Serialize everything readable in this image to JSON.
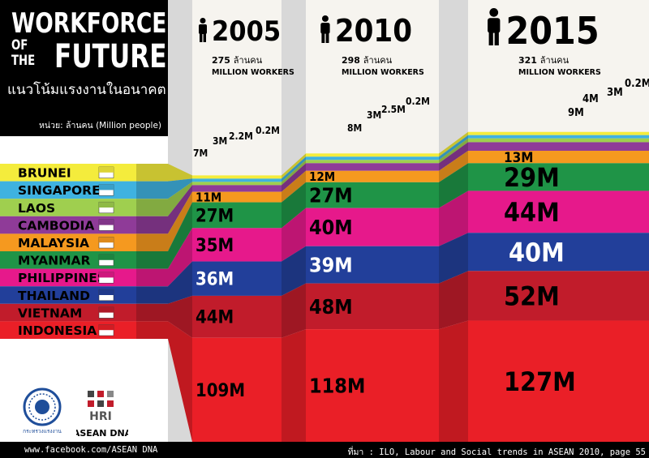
{
  "header": {
    "title_line1": "WORKFORCE",
    "title_of": "OF",
    "title_the": "THE",
    "title_future": "FUTURE",
    "subtitle_thai": "แนวโน้มแรงงานในอนาคต",
    "unit": "หน่วย: ล้านคน (Million people)"
  },
  "footer": {
    "facebook": "www.facebook.com/ASEAN DNA",
    "source": "ที่มา :  ILO, Labour and Social trends in ASEAN 2010, page 55"
  },
  "logos": {
    "seal_caption": "กระทรวงแรงงาน",
    "hri": "HRI",
    "asean_dna": "ASEAN DNA"
  },
  "colors": {
    "BRUNEI": "#f4ec3c",
    "SINGAPORE": "#3fb2e0",
    "LAOS": "#9fcf4f",
    "CAMBODIA": "#8f3b98",
    "MALAYSIA": "#f5991f",
    "MYANMAR": "#1f9447",
    "PHILIPPINES": "#e6198b",
    "THAILAND": "#223f9a",
    "VIETNAM": "#c11c2b",
    "INDONESIA": "#ea1f27"
  },
  "chart_data": {
    "type": "area",
    "categories": [
      "BRUNEI",
      "SINGAPORE",
      "LAOS",
      "CAMBODIA",
      "MALAYSIA",
      "MYANMAR",
      "PHILIPPINES",
      "THAILAND",
      "VIETNAM",
      "INDONESIA"
    ],
    "years": [
      {
        "year": "2005",
        "total": "275",
        "total_unit": "ล้านคน",
        "total_en": "MILLION WORKERS",
        "values": {
          "BRUNEI": 0.2,
          "SINGAPORE": 2.2,
          "LAOS": 3,
          "CAMBODIA": 7,
          "MALAYSIA": 11,
          "MYANMAR": 27,
          "PHILIPPINES": 35,
          "THAILAND": 36,
          "VIETNAM": 44,
          "INDONESIA": 109
        },
        "labels": {
          "BRUNEI": "0.2M",
          "SINGAPORE": "2.2M",
          "LAOS": "3M",
          "CAMBODIA": "7M",
          "MALAYSIA": "11M",
          "MYANMAR": "27M",
          "PHILIPPINES": "35M",
          "THAILAND": "36M",
          "VIETNAM": "44M",
          "INDONESIA": "109M"
        }
      },
      {
        "year": "2010",
        "total": "298",
        "total_unit": "ล้านคน",
        "total_en": "MILLION WORKERS",
        "values": {
          "BRUNEI": 0.2,
          "SINGAPORE": 2.5,
          "LAOS": 3,
          "CAMBODIA": 8,
          "MALAYSIA": 12,
          "MYANMAR": 27,
          "PHILIPPINES": 40,
          "THAILAND": 39,
          "VIETNAM": 48,
          "INDONESIA": 118
        },
        "labels": {
          "BRUNEI": "0.2M",
          "SINGAPORE": "2.5M",
          "LAOS": "3M",
          "CAMBODIA": "8M",
          "MALAYSIA": "12M",
          "MYANMAR": "27M",
          "PHILIPPINES": "40M",
          "THAILAND": "39M",
          "VIETNAM": "48M",
          "INDONESIA": "118M"
        }
      },
      {
        "year": "2015",
        "total": "321",
        "total_unit": "ล้านคน",
        "total_en": "MILLION WORKERS",
        "values": {
          "BRUNEI": 0.2,
          "SINGAPORE": 3,
          "LAOS": 4,
          "CAMBODIA": 9,
          "MALAYSIA": 13,
          "MYANMAR": 29,
          "PHILIPPINES": 44,
          "THAILAND": 40,
          "VIETNAM": 52,
          "INDONESIA": 127
        },
        "labels": {
          "BRUNEI": "0.2M",
          "SINGAPORE": "3M",
          "LAOS": "4M",
          "CAMBODIA": "9M",
          "MALAYSIA": "13M",
          "MYANMAR": "29M",
          "PHILIPPINES": "44M",
          "THAILAND": "40M",
          "VIETNAM": "52M",
          "INDONESIA": "127M"
        }
      }
    ]
  }
}
